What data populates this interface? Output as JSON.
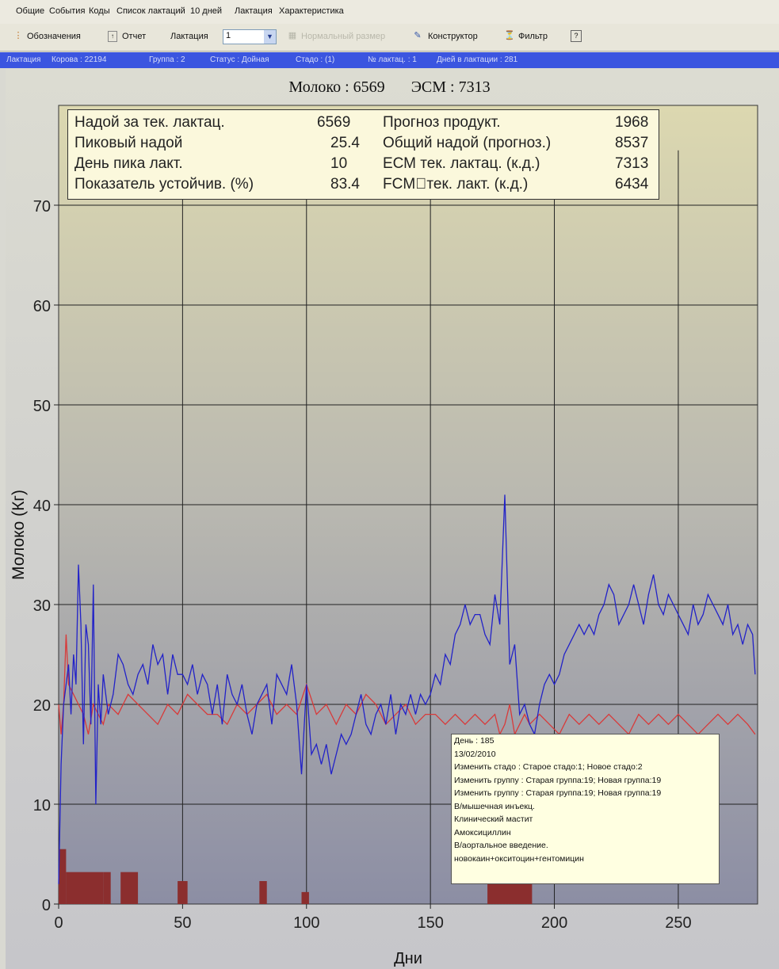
{
  "menu": [
    "Общие",
    "События",
    "Коды",
    "Список лактаций",
    "10 дней",
    "Лактация",
    "Характеристика"
  ],
  "toolbar": {
    "legend_label": "Обозначения",
    "report_label": "Отчет",
    "lactation_label": "Лактация",
    "lactation_value": "1",
    "normal_size_label": "Нормальный размер",
    "constructor_label": "Конструктор",
    "filter_label": "Фильтр"
  },
  "status_bar": [
    "Лактация",
    "Корова : 22194",
    "Группа : 2",
    "Статус : Дойная",
    "Стадо : (1)",
    "№ лактац. : 1",
    "Дней в лактации : 281"
  ],
  "header": {
    "milk": "Молоко : 6569",
    "ecm": "ЭСМ : 7313"
  },
  "summary": {
    "left": [
      {
        "label": "Надой за тек. лактац.",
        "value": "6569"
      },
      {
        "label": "Пиковый надой",
        "value": "25.4"
      },
      {
        "label": "День пика лакт.",
        "value": "10"
      },
      {
        "label": "Показатель устойчив. (%)",
        "value": "83.4"
      }
    ],
    "right": [
      {
        "label": "Прогноз продукт.",
        "value": "1968"
      },
      {
        "label": "Общий надой (прогноз.)",
        "value": "8537"
      },
      {
        "label": "ЕСМ тек. лактац. (к.д.)",
        "value": "7313"
      },
      {
        "label": "FCM\u0000тек. лакт. (к.д.)",
        "value": "6434"
      }
    ]
  },
  "tooltip": [
    "День : 185",
    "13/02/2010",
    "Изменить стадо : Старое стадо:1; Новое стадо:2",
    "Изменить группу : Старая группа:19; Новая группа:19",
    "Изменить группу : Старая группа:19; Новая группа:19",
    "В/мышечная инъекц.",
    "Клинический мастит",
    "Амоксициллин",
    "В/аортальное введение.",
    "новокаин+окситоцин+гентомицин"
  ],
  "colors": {
    "milk_line": "#2222c8",
    "red_line": "#d83a3a",
    "events": "#8b2e2e",
    "status_bar": "#3b55e0"
  },
  "chart_data": {
    "type": "line",
    "xlabel": "Дни",
    "ylabel": "Молоко  (Кг)",
    "xlim": [
      0,
      282
    ],
    "ylim": [
      0,
      80
    ],
    "xticks": [
      0,
      50,
      100,
      150,
      200,
      250
    ],
    "yticks": [
      0,
      10,
      20,
      30,
      40,
      50,
      60,
      70
    ],
    "grid": true,
    "series": [
      {
        "color": "#2222c8",
        "x": [
          0,
          1,
          2,
          3,
          4,
          5,
          6,
          7,
          8,
          9,
          10,
          11,
          12,
          13,
          14,
          15,
          16,
          17,
          18,
          20,
          22,
          24,
          26,
          28,
          30,
          32,
          34,
          36,
          38,
          40,
          42,
          44,
          46,
          48,
          50,
          52,
          54,
          56,
          58,
          60,
          62,
          64,
          66,
          68,
          70,
          72,
          74,
          76,
          78,
          80,
          82,
          84,
          86,
          88,
          90,
          92,
          94,
          96,
          98,
          100,
          102,
          104,
          106,
          108,
          110,
          112,
          114,
          116,
          118,
          120,
          122,
          124,
          126,
          128,
          130,
          132,
          134,
          136,
          138,
          140,
          142,
          144,
          146,
          148,
          150,
          152,
          154,
          156,
          158,
          160,
          162,
          164,
          166,
          168,
          170,
          172,
          174,
          176,
          178,
          180,
          182,
          184,
          186,
          188,
          190,
          192,
          194,
          196,
          198,
          200,
          202,
          204,
          206,
          208,
          210,
          212,
          214,
          216,
          218,
          220,
          222,
          224,
          226,
          228,
          230,
          232,
          234,
          236,
          238,
          240,
          242,
          244,
          246,
          248,
          250,
          252,
          254,
          256,
          258,
          260,
          262,
          264,
          266,
          268,
          270,
          272,
          274,
          276,
          278,
          280,
          281
        ],
        "y": [
          2,
          14,
          20,
          22,
          24,
          19,
          25,
          22,
          34,
          28,
          16,
          28,
          26,
          18,
          32,
          10,
          22,
          18,
          23,
          19,
          21,
          25,
          24,
          22,
          21,
          23,
          24,
          22,
          26,
          24,
          25,
          21,
          25,
          23,
          23,
          22,
          24,
          21,
          23,
          22,
          19,
          22,
          18,
          23,
          21,
          20,
          22,
          19,
          17,
          20,
          21,
          22,
          18,
          23,
          22,
          21,
          24,
          20,
          13,
          22,
          15,
          16,
          14,
          16,
          13,
          15,
          17,
          16,
          17,
          19,
          21,
          18,
          17,
          19,
          20,
          18,
          21,
          17,
          20,
          19,
          21,
          19,
          21,
          20,
          21,
          23,
          22,
          25,
          24,
          27,
          28,
          30,
          28,
          29,
          29,
          27,
          26,
          31,
          28,
          41,
          24,
          26,
          19,
          20,
          18,
          17,
          20,
          22,
          23,
          22,
          23,
          25,
          26,
          27,
          28,
          27,
          28,
          27,
          29,
          30,
          32,
          31,
          28,
          29,
          30,
          32,
          30,
          28,
          31,
          33,
          30,
          29,
          31,
          30,
          29,
          28,
          27,
          30,
          28,
          29,
          31,
          30,
          29,
          28,
          30,
          27,
          28,
          26,
          28,
          27,
          23
        ]
      },
      {
        "color": "#d83a3a",
        "x": [
          0,
          1,
          2,
          3,
          4,
          6,
          8,
          10,
          12,
          14,
          16,
          18,
          20,
          24,
          28,
          32,
          36,
          40,
          44,
          48,
          52,
          56,
          60,
          64,
          68,
          72,
          76,
          80,
          84,
          88,
          92,
          96,
          100,
          104,
          108,
          112,
          116,
          120,
          124,
          128,
          132,
          136,
          140,
          144,
          148,
          152,
          156,
          160,
          164,
          168,
          172,
          176,
          178,
          180,
          182,
          184,
          186,
          188,
          190,
          194,
          198,
          202,
          206,
          210,
          214,
          218,
          222,
          226,
          230,
          234,
          238,
          242,
          246,
          250,
          254,
          258,
          262,
          266,
          270,
          274,
          278,
          281
        ],
        "y": [
          20,
          17,
          20,
          27,
          22,
          21,
          20,
          19,
          17,
          20,
          19,
          18,
          20,
          19,
          21,
          20,
          19,
          18,
          20,
          19,
          21,
          20,
          19,
          19,
          18,
          20,
          19,
          20,
          21,
          19,
          20,
          19,
          22,
          19,
          20,
          18,
          20,
          19,
          21,
          20,
          18,
          19,
          20,
          18,
          19,
          19,
          18,
          19,
          18,
          19,
          18,
          19,
          17,
          18,
          20,
          17,
          18,
          19,
          18,
          19,
          18,
          17,
          19,
          18,
          19,
          18,
          19,
          18,
          17,
          19,
          18,
          19,
          18,
          19,
          18,
          17,
          18,
          19,
          18,
          19,
          18,
          17
        ]
      }
    ],
    "events": [
      {
        "x0": 0,
        "x1": 3,
        "height": 5.5
      },
      {
        "x0": 3,
        "x1": 18,
        "height": 3.2
      },
      {
        "x0": 18,
        "x1": 21,
        "height": 3.2
      },
      {
        "x0": 25,
        "x1": 32,
        "height": 3.2
      },
      {
        "x0": 48,
        "x1": 52,
        "height": 2.3
      },
      {
        "x0": 81,
        "x1": 84,
        "height": 2.3
      },
      {
        "x0": 98,
        "x1": 101,
        "height": 1.2
      },
      {
        "x0": 173,
        "x1": 191,
        "height": 3.2
      }
    ]
  }
}
